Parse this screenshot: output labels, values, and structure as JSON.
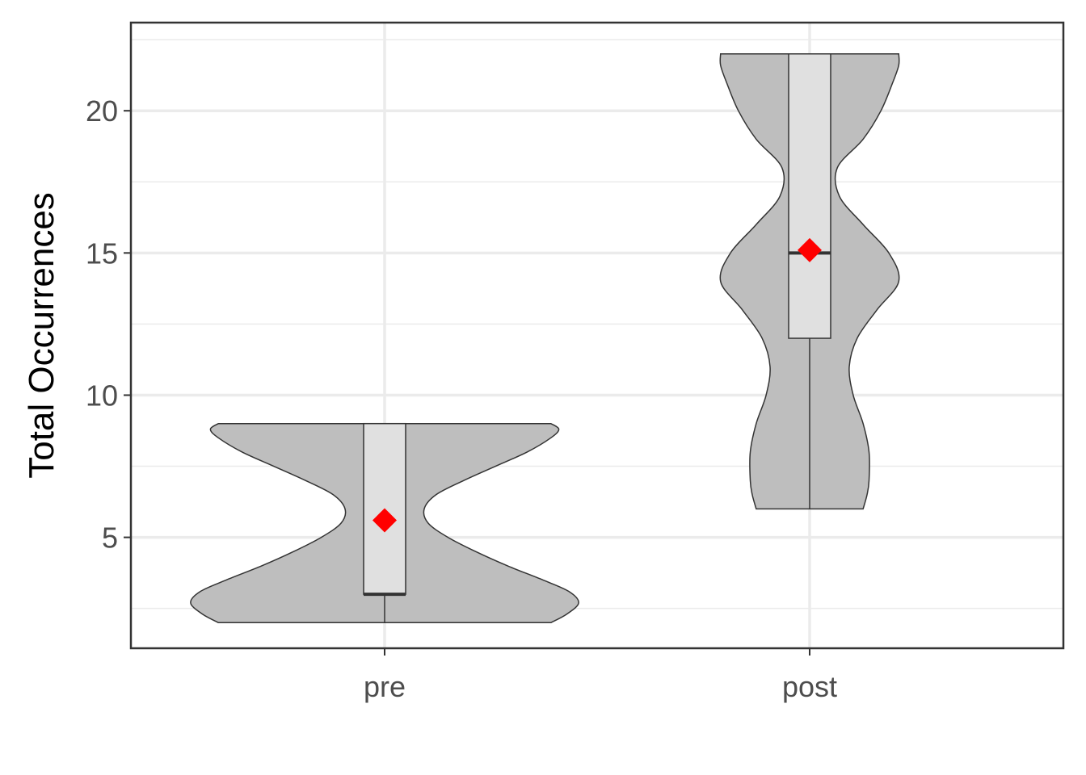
{
  "chart_data": {
    "type": "violin",
    "title": "",
    "xlabel": "",
    "ylabel": "Total Occurrences",
    "categories": [
      "pre",
      "post"
    ],
    "ylim": [
      1.1,
      23.1
    ],
    "yticks": [
      5,
      10,
      15,
      20
    ],
    "grid": true,
    "legend": "none",
    "groups": [
      {
        "category": "pre",
        "min": 2,
        "q1": 3,
        "median": 3,
        "q3": 9,
        "max": 9,
        "mean": 5.6,
        "density": [
          {
            "y": 2.0,
            "w": 0.84
          },
          {
            "y": 2.3,
            "w": 0.92
          },
          {
            "y": 2.7,
            "w": 0.98
          },
          {
            "y": 3.1,
            "w": 0.93
          },
          {
            "y": 3.5,
            "w": 0.8
          },
          {
            "y": 4.0,
            "w": 0.62
          },
          {
            "y": 4.5,
            "w": 0.46
          },
          {
            "y": 5.0,
            "w": 0.32
          },
          {
            "y": 5.5,
            "w": 0.22
          },
          {
            "y": 6.0,
            "w": 0.2
          },
          {
            "y": 6.5,
            "w": 0.26
          },
          {
            "y": 7.0,
            "w": 0.4
          },
          {
            "y": 7.5,
            "w": 0.56
          },
          {
            "y": 8.0,
            "w": 0.72
          },
          {
            "y": 8.5,
            "w": 0.84
          },
          {
            "y": 8.8,
            "w": 0.88
          },
          {
            "y": 9.0,
            "w": 0.84
          }
        ]
      },
      {
        "category": "post",
        "min": 6,
        "q1": 12,
        "median": 15,
        "q3": 22,
        "max": 22,
        "mean": 15.1,
        "density": [
          {
            "y": 6.0,
            "w": 0.27
          },
          {
            "y": 6.5,
            "w": 0.29
          },
          {
            "y": 7.0,
            "w": 0.3
          },
          {
            "y": 8.0,
            "w": 0.3
          },
          {
            "y": 9.0,
            "w": 0.27
          },
          {
            "y": 10.0,
            "w": 0.22
          },
          {
            "y": 11.0,
            "w": 0.2
          },
          {
            "y": 12.0,
            "w": 0.24
          },
          {
            "y": 13.0,
            "w": 0.34
          },
          {
            "y": 14.0,
            "w": 0.45
          },
          {
            "y": 15.0,
            "w": 0.4
          },
          {
            "y": 16.0,
            "w": 0.27
          },
          {
            "y": 17.0,
            "w": 0.15
          },
          {
            "y": 18.0,
            "w": 0.14
          },
          {
            "y": 19.0,
            "w": 0.27
          },
          {
            "y": 20.0,
            "w": 0.36
          },
          {
            "y": 21.0,
            "w": 0.42
          },
          {
            "y": 21.6,
            "w": 0.45
          },
          {
            "y": 22.0,
            "w": 0.45
          }
        ]
      }
    ],
    "colors": {
      "violin_fill": "#bebebe",
      "box_fill": "#e0e0e0",
      "outline": "#333333",
      "mean_marker": "#ff0000",
      "grid": "#ebebeb",
      "panel_border": "#333333"
    }
  }
}
